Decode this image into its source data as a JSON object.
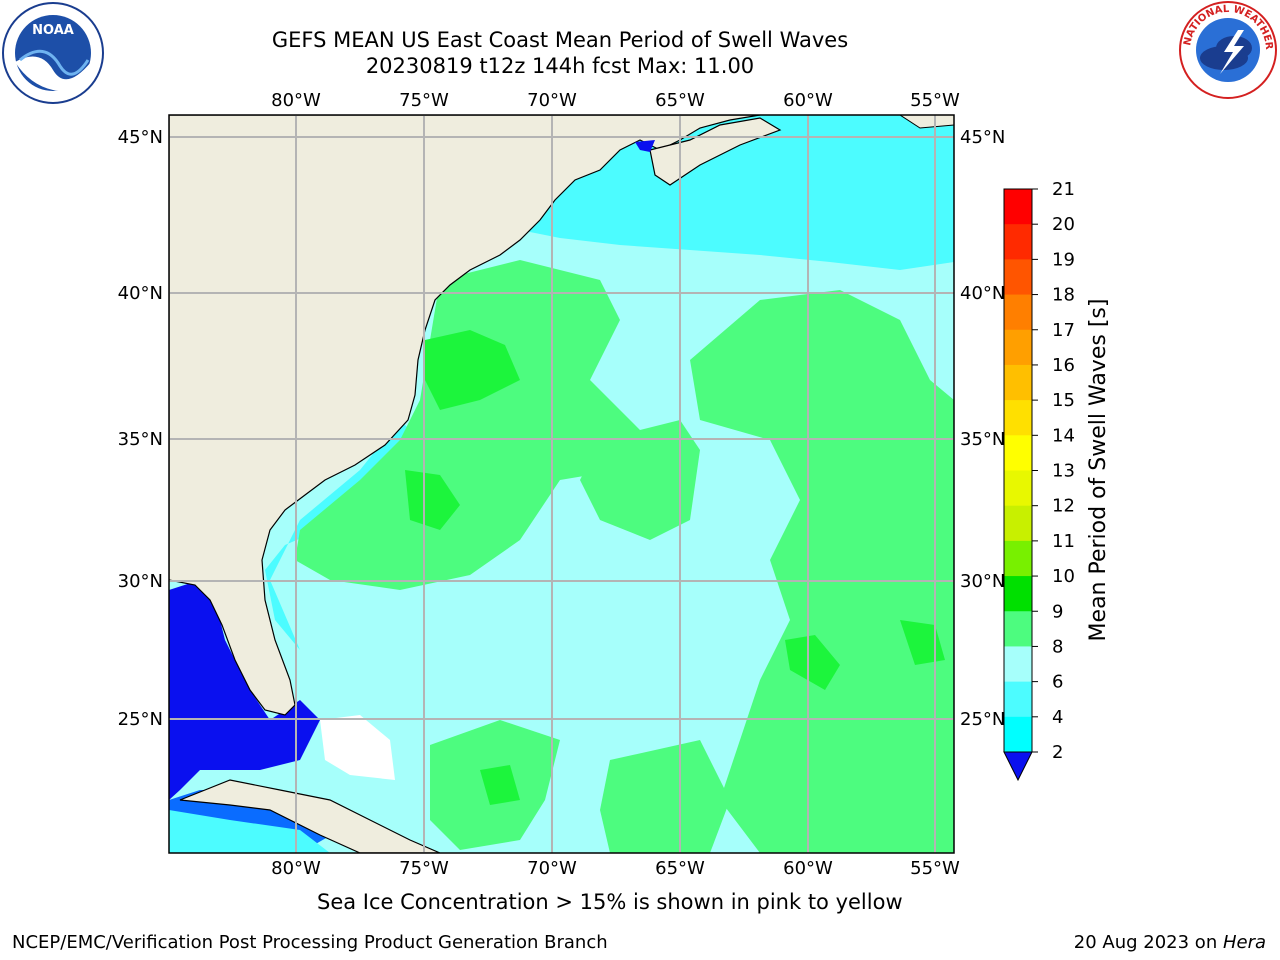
{
  "title": {
    "line1": "GEFS MEAN US East Coast Mean Period of Swell Waves",
    "line2": "20230819 t12z 144h fcst   Max: 11.00"
  },
  "map": {
    "lon_labels": [
      "80°W",
      "75°W",
      "70°W",
      "65°W",
      "60°W",
      "55°W"
    ],
    "lat_labels": [
      "45°N",
      "40°N",
      "35°N",
      "30°N",
      "25°N"
    ],
    "colors": {
      "land": "#efedde",
      "ocean_light": "#a6fffb",
      "ocean_cyan": "#4cfcff",
      "ocean_green_light": "#4dfc7f",
      "ocean_green": "#1cf53c",
      "gulf_blue": "#0a10ef",
      "mid_blue": "#0a6cff",
      "grid": "#b4b4b4"
    }
  },
  "colorbar": {
    "label": "Mean Period of Swell Waves [s]",
    "ticks": [
      "21",
      "20",
      "19",
      "18",
      "17",
      "16",
      "15",
      "14",
      "13",
      "12",
      "11",
      "10",
      "9",
      "8",
      "6",
      "4",
      "2"
    ],
    "colors": [
      "#ff0000",
      "#ff2a00",
      "#ff5500",
      "#ff7f00",
      "#ff9f00",
      "#ffbf00",
      "#ffe000",
      "#ffff00",
      "#e8f800",
      "#c8f000",
      "#78f000",
      "#00e000",
      "#4dfc7f",
      "#a6fffb",
      "#4cfcff",
      "#00ffff",
      "#0a6cff",
      "#0a10ef"
    ]
  },
  "note": "Sea Ice Concentration > 15% is shown in pink to yellow",
  "footer": {
    "left": "NCEP/EMC/Verification Post Processing Product Generation Branch",
    "date": "20 Aug 2023 on ",
    "machine": "Hera"
  },
  "logos": {
    "noaa_text": "NOAA",
    "nws_text": "NATIONAL WEATHER SERVICE"
  }
}
